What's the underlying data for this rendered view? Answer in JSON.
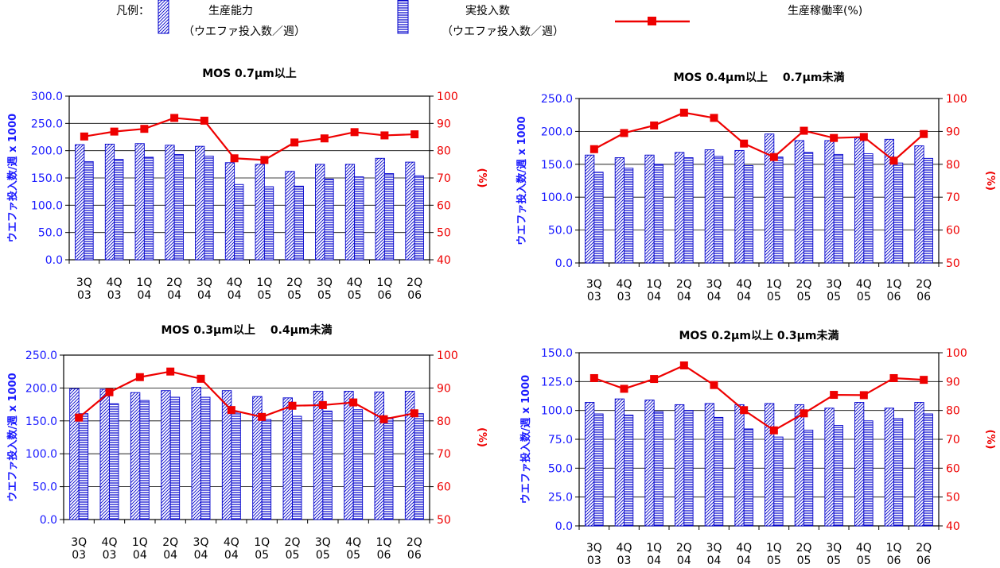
{
  "legend": {
    "label": "凡例：",
    "items": [
      {
        "name": "生産能力",
        "sub": "（ウエファ投入数／週）"
      },
      {
        "name": "実投入数",
        "sub": "（ウエファ投入数／週）"
      },
      {
        "name": "生産稼働率(%)",
        "sub": ""
      }
    ]
  },
  "colors": {
    "bar_fill": "#0000cc",
    "bar_bg": "#ffffff",
    "line": "#ee0000",
    "left_axis": "#1a1aff",
    "right_axis": "#ee0000"
  },
  "chart_data": [
    {
      "type": "bar",
      "title": "MOS  0.7μm以上",
      "categories": [
        [
          "3Q",
          "03"
        ],
        [
          "4Q",
          "03"
        ],
        [
          "1Q",
          "04"
        ],
        [
          "2Q",
          "04"
        ],
        [
          "3Q",
          "04"
        ],
        [
          "4Q",
          "04"
        ],
        [
          "1Q",
          "05"
        ],
        [
          "2Q",
          "05"
        ],
        [
          "3Q",
          "05"
        ],
        [
          "4Q",
          "05"
        ],
        [
          "1Q",
          "06"
        ],
        [
          "2Q",
          "06"
        ]
      ],
      "ylabel": "ウエファ投入数/週 x 1000",
      "y2label": "(%)",
      "ylim": [
        0,
        300
      ],
      "yticks": [
        "0.0",
        "50.0",
        "100.0",
        "150.0",
        "200.0",
        "250.0",
        "300.0"
      ],
      "y2lim": [
        40,
        100
      ],
      "y2ticks": [
        "40",
        "50",
        "60",
        "70",
        "80",
        "90",
        "100"
      ],
      "grid": true,
      "series": [
        {
          "name": "生産能力",
          "kind": "bar",
          "pattern": "diagonal",
          "values": [
            211,
            212,
            213,
            210,
            208,
            178,
            175,
            162,
            175,
            175,
            186,
            179
          ]
        },
        {
          "name": "実投入数",
          "kind": "bar",
          "pattern": "horizontal",
          "values": [
            180,
            184,
            188,
            193,
            190,
            138,
            134,
            135,
            148,
            152,
            158,
            154
          ]
        },
        {
          "name": "生産稼働率(%)",
          "kind": "line",
          "axis": "right",
          "values": [
            85.2,
            87,
            88,
            92,
            91,
            77.2,
            76.6,
            83,
            84.5,
            86.8,
            85.6,
            86
          ]
        }
      ]
    },
    {
      "type": "bar",
      "title": "MOS 0.4μm以上　 0.7μm未満",
      "categories": [
        [
          "3Q",
          "03"
        ],
        [
          "4Q",
          "03"
        ],
        [
          "1Q",
          "04"
        ],
        [
          "2Q",
          "04"
        ],
        [
          "3Q",
          "04"
        ],
        [
          "4Q",
          "04"
        ],
        [
          "1Q",
          "05"
        ],
        [
          "2Q",
          "05"
        ],
        [
          "3Q",
          "05"
        ],
        [
          "4Q",
          "05"
        ],
        [
          "1Q",
          "06"
        ],
        [
          "2Q",
          "06"
        ]
      ],
      "ylabel": "ウエファ投入数/週 x 1000",
      "y2label": "(%)",
      "ylim": [
        0,
        250
      ],
      "yticks": [
        "0.0",
        "50.0",
        "100.0",
        "150.0",
        "200.0",
        "250.0"
      ],
      "y2lim": [
        50,
        100
      ],
      "y2ticks": [
        "50",
        "60",
        "70",
        "80",
        "90",
        "100"
      ],
      "grid": true,
      "series": [
        {
          "name": "生産能力",
          "kind": "bar",
          "pattern": "diagonal",
          "values": [
            164,
            160,
            164,
            168,
            172,
            171,
            196,
            186,
            186,
            190,
            188,
            178
          ]
        },
        {
          "name": "実投入数",
          "kind": "bar",
          "pattern": "horizontal",
          "values": [
            138,
            144,
            150,
            160,
            162,
            148,
            161,
            168,
            165,
            166,
            152,
            159
          ]
        },
        {
          "name": "生産稼働率(%)",
          "kind": "line",
          "axis": "right",
          "values": [
            84.6,
            89.5,
            91.8,
            95.7,
            94.1,
            86.3,
            82.2,
            90.2,
            88,
            88.3,
            81.1,
            89.2
          ]
        }
      ]
    },
    {
      "type": "bar",
      "title": "MOS 0.3μm以上　 0.4μm未満",
      "categories": [
        [
          "3Q",
          "03"
        ],
        [
          "4Q",
          "03"
        ],
        [
          "1Q",
          "04"
        ],
        [
          "2Q",
          "04"
        ],
        [
          "3Q",
          "04"
        ],
        [
          "4Q",
          "04"
        ],
        [
          "1Q",
          "05"
        ],
        [
          "2Q",
          "05"
        ],
        [
          "3Q",
          "05"
        ],
        [
          "4Q",
          "05"
        ],
        [
          "1Q",
          "06"
        ],
        [
          "2Q",
          "06"
        ]
      ],
      "ylabel": "ウエファ投入数/週 x 1000",
      "y2label": "(%)",
      "ylim": [
        0,
        250
      ],
      "yticks": [
        "0.0",
        "50.0",
        "100.0",
        "150.0",
        "200.0",
        "250.0"
      ],
      "y2lim": [
        50,
        100
      ],
      "y2ticks": [
        "50",
        "60",
        "70",
        "80",
        "90",
        "100"
      ],
      "grid": true,
      "series": [
        {
          "name": "生産能力",
          "kind": "bar",
          "pattern": "diagonal",
          "values": [
            199,
            198,
            193,
            196,
            201,
            196,
            187,
            185,
            195,
            195,
            194,
            195
          ]
        },
        {
          "name": "実投入数",
          "kind": "bar",
          "pattern": "horizontal",
          "values": [
            161,
            176,
            181,
            186,
            186,
            163,
            152,
            157,
            165,
            167,
            155,
            161
          ]
        },
        {
          "name": "生産稼働率(%)",
          "kind": "line",
          "axis": "right",
          "values": [
            81,
            88.7,
            93.3,
            95,
            92.8,
            83.3,
            81.2,
            84.6,
            84.8,
            85.6,
            80.5,
            82.3
          ]
        }
      ]
    },
    {
      "type": "bar",
      "title": "MOS 0.2μm以上  0.3μm未満",
      "categories": [
        [
          "3Q",
          "03"
        ],
        [
          "4Q",
          "03"
        ],
        [
          "1Q",
          "04"
        ],
        [
          "2Q",
          "04"
        ],
        [
          "3Q",
          "04"
        ],
        [
          "4Q",
          "04"
        ],
        [
          "1Q",
          "05"
        ],
        [
          "2Q",
          "05"
        ],
        [
          "3Q",
          "05"
        ],
        [
          "4Q",
          "05"
        ],
        [
          "1Q",
          "06"
        ],
        [
          "2Q",
          "06"
        ]
      ],
      "ylabel": "ウエファ投入数/週 x 1000",
      "y2label": "(%)",
      "ylim": [
        0,
        150
      ],
      "yticks": [
        "0.0",
        "25.0",
        "50.0",
        "75.0",
        "100.0",
        "125.0",
        "150.0"
      ],
      "y2lim": [
        40,
        100
      ],
      "y2ticks": [
        "40",
        "50",
        "60",
        "70",
        "80",
        "90",
        "100"
      ],
      "grid": true,
      "series": [
        {
          "name": "生産能力",
          "kind": "bar",
          "pattern": "diagonal",
          "values": [
            107,
            110,
            109,
            105,
            106,
            105,
            106,
            105,
            102,
            107,
            102,
            107
          ]
        },
        {
          "name": "実投入数",
          "kind": "bar",
          "pattern": "horizontal",
          "values": [
            97,
            96,
            99,
            100,
            94,
            84,
            77,
            83,
            87,
            91,
            93,
            97
          ]
        },
        {
          "name": "生産稼働率(%)",
          "kind": "line",
          "axis": "right",
          "values": [
            91.2,
            87.5,
            90.9,
            95.6,
            88.8,
            80.1,
            73.1,
            79,
            85.4,
            85.3,
            91.2,
            90.6
          ]
        }
      ]
    }
  ]
}
